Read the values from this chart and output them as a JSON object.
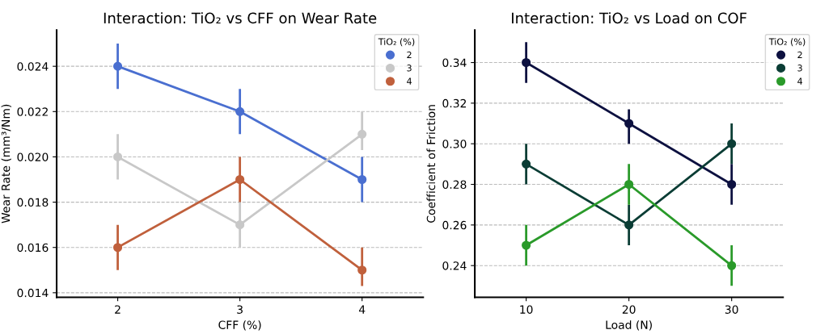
{
  "chart_data": [
    {
      "type": "line",
      "title": "Interaction: TiO₂ vs CFF on Wear Rate",
      "xlabel": "CFF (%)",
      "ylabel": "Wear Rate (mm³/Nm)",
      "legend_title": "TiO₂ (%)",
      "categories": [
        "2",
        "3",
        "4"
      ],
      "ylim": [
        0.0138,
        0.0256
      ],
      "yticks": [
        {
          "value": 0.014,
          "label": "0.014"
        },
        {
          "value": 0.016,
          "label": "0.016"
        },
        {
          "value": 0.018,
          "label": "0.018"
        },
        {
          "value": 0.02,
          "label": "0.020"
        },
        {
          "value": 0.022,
          "label": "0.022"
        },
        {
          "value": 0.024,
          "label": "0.024"
        }
      ],
      "grid": "y",
      "legend": "top right",
      "marker": "circle",
      "line_style": "solid",
      "series": [
        {
          "name": "2",
          "color": "#4a6fd0",
          "values": [
            0.024,
            0.022,
            0.019
          ],
          "errors": [
            [
              0.023,
              0.025
            ],
            [
              0.021,
              0.023
            ],
            [
              0.018,
              0.02
            ]
          ]
        },
        {
          "name": "3",
          "color": "#c8c8c8",
          "values": [
            0.02,
            0.017,
            0.021
          ],
          "errors": [
            [
              0.019,
              0.021
            ],
            [
              0.016,
              0.018
            ],
            [
              0.0203,
              0.022
            ]
          ]
        },
        {
          "name": "4",
          "color": "#c0603c",
          "values": [
            0.016,
            0.019,
            0.015
          ],
          "errors": [
            [
              0.015,
              0.017
            ],
            [
              0.018,
              0.02
            ],
            [
              0.0143,
              0.016
            ]
          ]
        }
      ]
    },
    {
      "type": "line",
      "title": "Interaction: TiO₂ vs Load on COF",
      "xlabel": "Load (N)",
      "ylabel": "Coefficient of Friction",
      "legend_title": "TiO₂ (%)",
      "categories": [
        "10",
        "20",
        "30"
      ],
      "ylim": [
        0.2244,
        0.356
      ],
      "yticks": [
        {
          "value": 0.24,
          "label": "0.24"
        },
        {
          "value": 0.26,
          "label": "0.26"
        },
        {
          "value": 0.28,
          "label": "0.28"
        },
        {
          "value": 0.3,
          "label": "0.30"
        },
        {
          "value": 0.32,
          "label": "0.32"
        },
        {
          "value": 0.34,
          "label": "0.34"
        }
      ],
      "grid": "y",
      "legend": "top right",
      "marker": "circle",
      "line_style": "solid",
      "series": [
        {
          "name": "2",
          "color": "#0d1140",
          "values": [
            0.34,
            0.31,
            0.28
          ],
          "errors": [
            [
              0.33,
              0.35
            ],
            [
              0.3,
              0.317
            ],
            [
              0.27,
              0.29
            ]
          ]
        },
        {
          "name": "3",
          "color": "#0b3d35",
          "values": [
            0.29,
            0.26,
            0.3
          ],
          "errors": [
            [
              0.28,
              0.3
            ],
            [
              0.25,
              0.27
            ],
            [
              0.29,
              0.31
            ]
          ]
        },
        {
          "name": "4",
          "color": "#2a9a2a",
          "values": [
            0.25,
            0.28,
            0.24
          ],
          "errors": [
            [
              0.24,
              0.26
            ],
            [
              0.27,
              0.29
            ],
            [
              0.23,
              0.25
            ]
          ]
        }
      ]
    }
  ]
}
